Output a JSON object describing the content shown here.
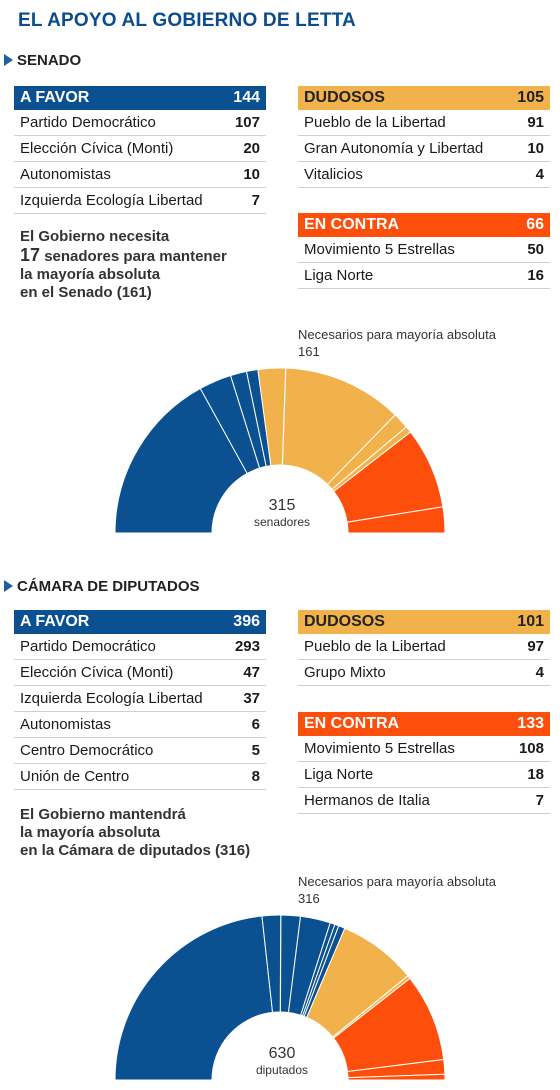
{
  "title": "EL APOYO AL GOBIERNO DE LETTA",
  "colors": {
    "favor": "#0b5192",
    "dudosos": "#f2b24b",
    "contra": "#fd4e0c"
  },
  "senado": {
    "heading": "SENADO",
    "favor": {
      "label": "A FAVOR",
      "total": "144",
      "rows": [
        {
          "name": "Partido Democrático",
          "value": "107"
        },
        {
          "name": "Elección Cívica (Monti)",
          "value": "20"
        },
        {
          "name": "Autonomistas",
          "value": "10"
        },
        {
          "name": "Izquierda Ecología Libertad",
          "value": "7"
        }
      ]
    },
    "dudosos": {
      "label": "DUDOSOS",
      "total": "105",
      "rows": [
        {
          "name": "Pueblo de la Libertad",
          "value": "91"
        },
        {
          "name": "Gran Autonomía y Libertad",
          "value": "10"
        },
        {
          "name": "Vitalicios",
          "value": "4"
        }
      ]
    },
    "contra": {
      "label": "EN CONTRA",
      "total": "66",
      "rows": [
        {
          "name": "Movimiento 5 Estrellas",
          "value": "50"
        },
        {
          "name": "Liga Norte",
          "value": "16"
        }
      ]
    },
    "note": {
      "line1": "El Gobierno necesita",
      "big": "17",
      "line2": " senadores para mantener",
      "line3": "la mayoría absoluta",
      "line4": "en el Senado (161)"
    },
    "needed_label": "Necesarios para mayoría absoluta",
    "needed_value": "161",
    "total": "315",
    "unit": "senadores"
  },
  "camara": {
    "heading": "CÁMARA DE DIPUTADOS",
    "favor": {
      "label": "A FAVOR",
      "total": "396",
      "rows": [
        {
          "name": "Partido Democrático",
          "value": "293"
        },
        {
          "name": "Elección Cívica (Monti)",
          "value": "47"
        },
        {
          "name": "Izquierda Ecología Libertad",
          "value": "37"
        },
        {
          "name": "Autonomistas",
          "value": "6"
        },
        {
          "name": "Centro Democrático",
          "value": "5"
        },
        {
          "name": "Unión de Centro",
          "value": "8"
        }
      ]
    },
    "dudosos": {
      "label": "DUDOSOS",
      "total": "101",
      "rows": [
        {
          "name": "Pueblo de la Libertad",
          "value": "97"
        },
        {
          "name": "Grupo Mixto",
          "value": "4"
        }
      ]
    },
    "contra": {
      "label": "EN CONTRA",
      "total": "133",
      "rows": [
        {
          "name": "Movimiento 5 Estrellas",
          "value": "108"
        },
        {
          "name": "Liga Norte",
          "value": "18"
        },
        {
          "name": "Hermanos de Italia",
          "value": "7"
        }
      ]
    },
    "note": {
      "line1": "El Gobierno mantendrá",
      "line2": "la mayoría absoluta",
      "line3": "en la Cámara de diputados (316)"
    },
    "needed_label": "Necesarios para mayoría absoluta",
    "needed_value": "316",
    "total": "630",
    "unit": "diputados"
  },
  "chart_data": [
    {
      "type": "hemicycle",
      "total": 315,
      "majority": 161,
      "series": [
        {
          "name": "Partido Democrático",
          "value": 107,
          "color": "#0b5192"
        },
        {
          "name": "Elección Cívica (Monti)",
          "value": 20,
          "color": "#0b5192"
        },
        {
          "name": "Autonomistas",
          "value": 10,
          "color": "#0b5192"
        },
        {
          "name": "Izquierda Ecología Libertad",
          "value": 7,
          "color": "#0b5192"
        },
        {
          "name": "Pueblo de la Libertad",
          "value": 91,
          "color": "#f2b24b"
        },
        {
          "name": "Gran Autonomía y Libertad",
          "value": 10,
          "color": "#f2b24b"
        },
        {
          "name": "Vitalicios",
          "value": 4,
          "color": "#f2b24b"
        },
        {
          "name": "Movimiento 5 Estrellas",
          "value": 50,
          "color": "#fd4e0c"
        },
        {
          "name": "Liga Norte",
          "value": 16,
          "color": "#fd4e0c"
        }
      ]
    },
    {
      "type": "hemicycle",
      "total": 630,
      "majority": 316,
      "series": [
        {
          "name": "Partido Democrático",
          "value": 293,
          "color": "#0b5192"
        },
        {
          "name": "Elección Cívica (Monti)",
          "value": 47,
          "color": "#0b5192"
        },
        {
          "name": "Izquierda Ecología Libertad",
          "value": 37,
          "color": "#0b5192"
        },
        {
          "name": "Autonomistas",
          "value": 6,
          "color": "#0b5192"
        },
        {
          "name": "Centro Democrático",
          "value": 5,
          "color": "#0b5192"
        },
        {
          "name": "Unión de Centro",
          "value": 8,
          "color": "#0b5192"
        },
        {
          "name": "Pueblo de la Libertad",
          "value": 97,
          "color": "#f2b24b"
        },
        {
          "name": "Grupo Mixto",
          "value": 4,
          "color": "#f2b24b"
        },
        {
          "name": "Movimiento 5 Estrellas",
          "value": 108,
          "color": "#fd4e0c"
        },
        {
          "name": "Liga Norte",
          "value": 18,
          "color": "#fd4e0c"
        },
        {
          "name": "Hermanos de Italia",
          "value": 7,
          "color": "#fd4e0c"
        }
      ]
    }
  ]
}
